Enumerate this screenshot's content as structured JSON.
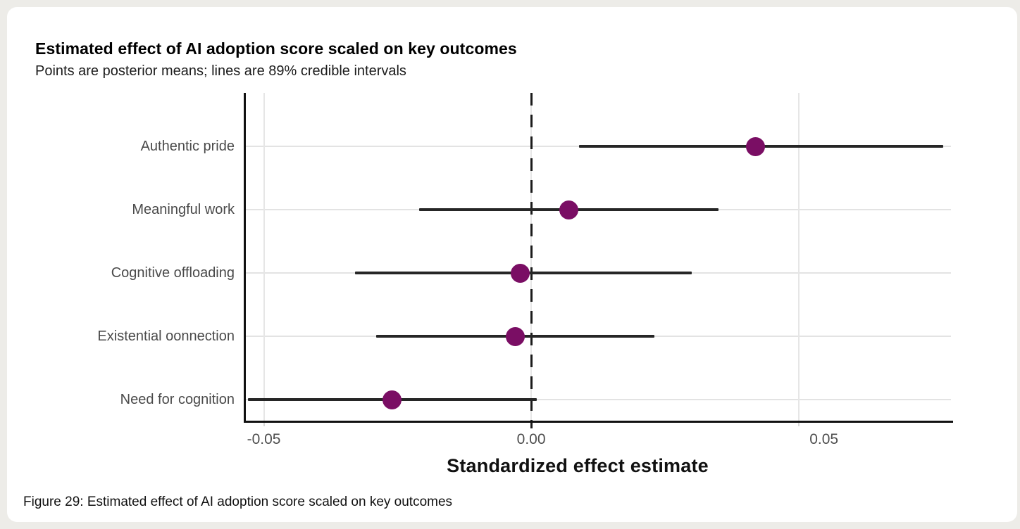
{
  "page": {
    "caption": "Figure 29: Estimated effect of AI adoption score scaled on key outcomes"
  },
  "chart_data": {
    "type": "scatter",
    "variant": "forest-plot-dot-interval",
    "title": "Estimated effect of AI adoption score scaled on key outcomes",
    "subtitle": "Points are posterior means; lines are 89% credible intervals",
    "xlabel": "Standardized effect estimate",
    "ylabel": "",
    "interval_level": "89% credible interval",
    "categories": [
      "Authentic pride",
      "Meaningful work",
      "Cognitive offloading",
      "Existential oonnection",
      "Need for cognition"
    ],
    "series": [
      {
        "name": "posterior mean with 89% credible interval",
        "points": [
          {
            "category": "Authentic pride",
            "mean": 0.042,
            "ci_lower": 0.009,
            "ci_upper": 0.077
          },
          {
            "category": "Meaningful work",
            "mean": 0.007,
            "ci_lower": -0.021,
            "ci_upper": 0.035
          },
          {
            "category": "Cognitive offloading",
            "mean": -0.002,
            "ci_lower": -0.033,
            "ci_upper": 0.03
          },
          {
            "category": "Existential oonnection",
            "mean": -0.003,
            "ci_lower": -0.029,
            "ci_upper": 0.023
          },
          {
            "category": "Need for cognition",
            "mean": -0.026,
            "ci_lower": -0.053,
            "ci_upper": 0.001
          }
        ]
      }
    ],
    "xlim": [
      -0.0535,
      0.0785
    ],
    "xticks": [
      {
        "value": -0.05,
        "label": "-0.05"
      },
      {
        "value": 0.0,
        "label": "0.00"
      },
      {
        "value": 0.05,
        "label": "0.05"
      }
    ],
    "zero_reference_line": 0.0,
    "grid": true,
    "legend": "none",
    "colors": {
      "point": "#7a0e64",
      "interval_line": "#262626",
      "gridline": "#e3e3e3",
      "axis_spine": "#111111",
      "tick_text": "#4e4e4e",
      "category_text": "#4a4a4a",
      "title_text": "#000000",
      "card_background": "#ffffff",
      "outer_background": "#edece8"
    }
  }
}
